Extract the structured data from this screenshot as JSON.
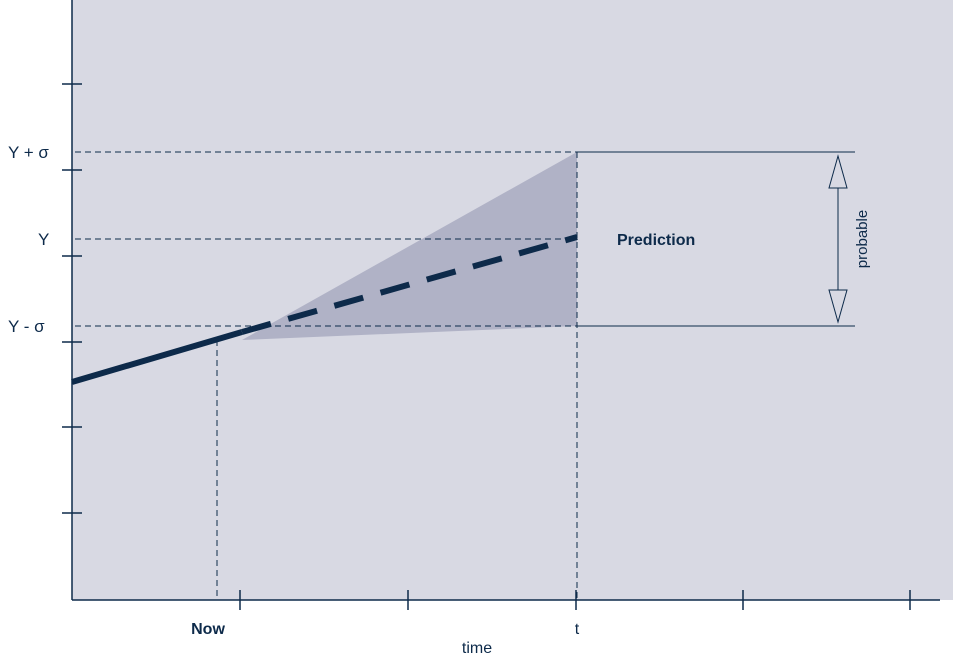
{
  "chart_data": {
    "type": "line",
    "y_labels": [
      "Y + σ",
      "Y",
      "Y - σ"
    ],
    "x_labels": [
      "Now",
      "t"
    ],
    "xlabel": "time",
    "annotations": {
      "prediction_label": "Prediction",
      "range_label": "probable"
    },
    "series": [
      {
        "style": "solid"
      },
      {
        "style": "dashed"
      }
    ],
    "grid": false
  },
  "colors": {
    "plot_background": "#d8d9e3",
    "cone_fill": "#b0b2c6",
    "line": "#0d2a4a",
    "axis": "#0d2a4a"
  }
}
